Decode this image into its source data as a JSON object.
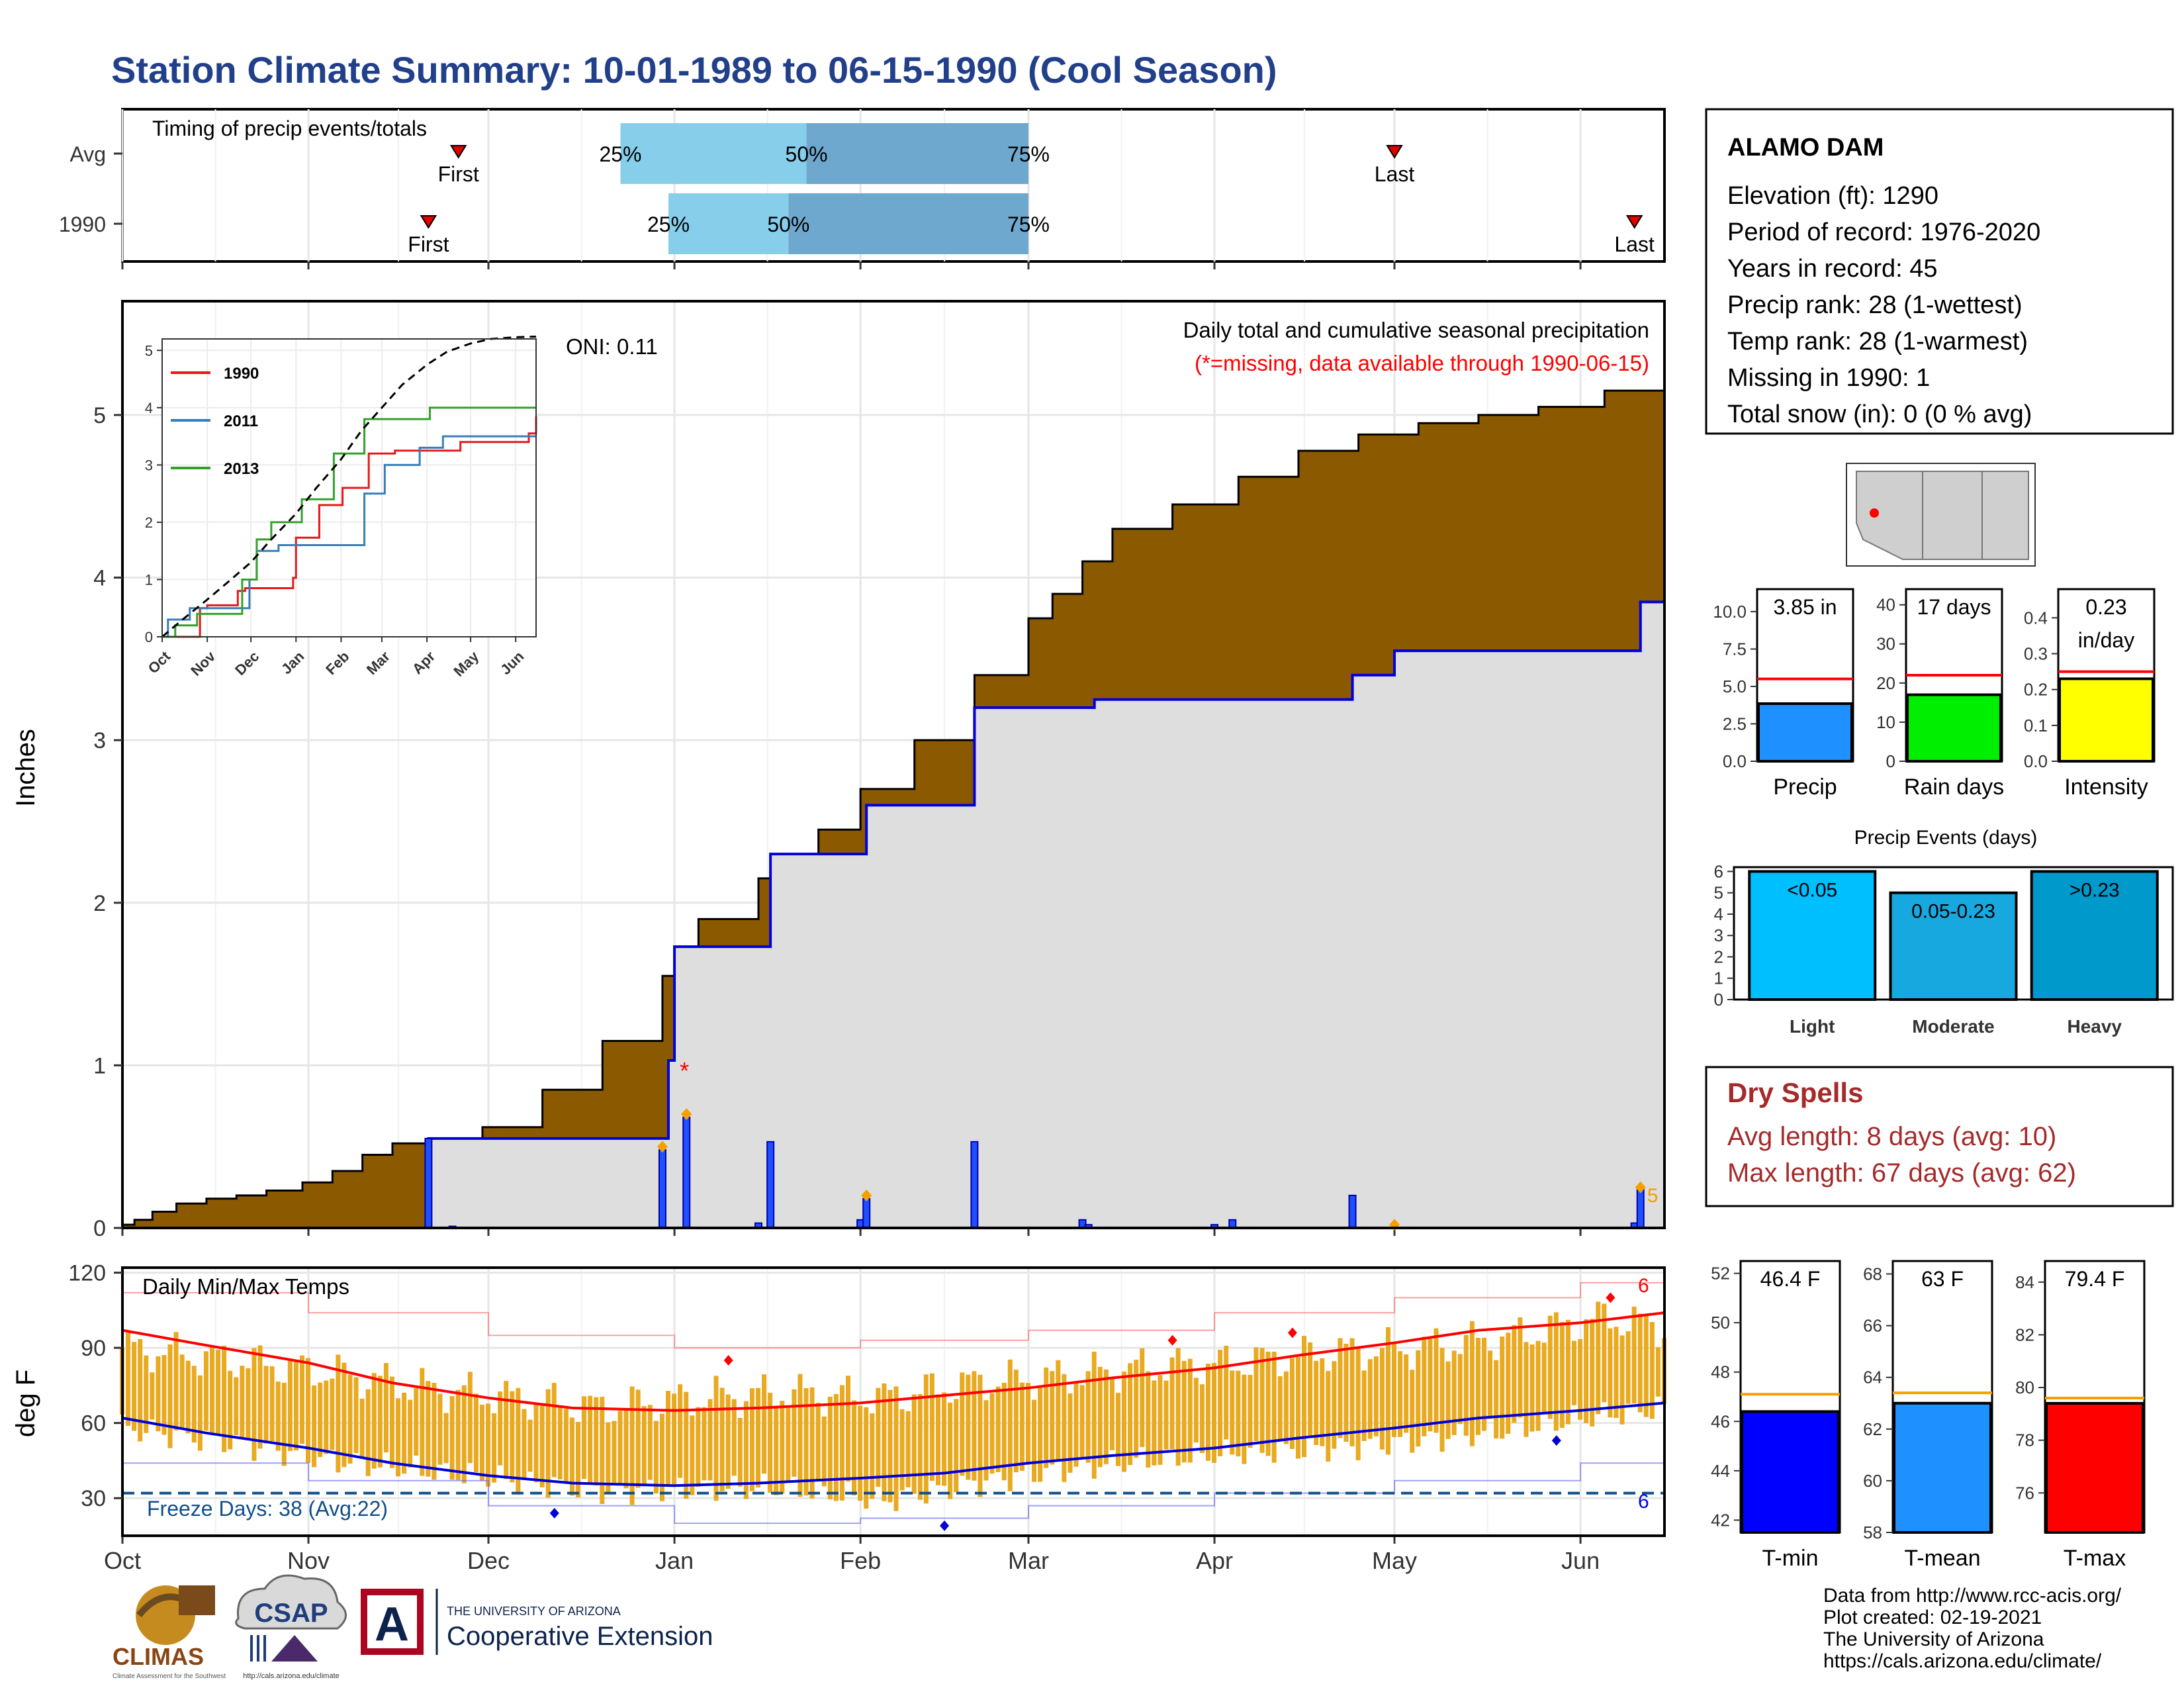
{
  "title": "Station Climate Summary: 10-01-1989 to 06-15-1990 (Cool Season)",
  "colors": {
    "title": "#22408a",
    "cum_fill": "#8b5a00",
    "avg_fill": "#dedede",
    "daily_bar": "#1f4fff",
    "temp_bar": "#e8aa20",
    "tmax": "#ff0000",
    "tmin": "#0000d8",
    "dry": "#a52a2a",
    "q1": "#87ceeb",
    "q2": "#6fa8ce",
    "blue_bar": "#1e90ff",
    "green_bar": "#00ee00",
    "yellow_bar": "#ffff00",
    "light": "#00bfff",
    "moderate": "#18a8e0",
    "heavy": "#0099cc"
  },
  "months": [
    "Oct",
    "Nov",
    "Dec",
    "Jan",
    "Feb",
    "Mar",
    "Apr",
    "May",
    "Jun"
  ],
  "timing": {
    "title": "Timing of precip events/totals",
    "rows": [
      {
        "label": "Avg",
        "first_label": "First",
        "last_label": "Last",
        "first": "1989-11-26",
        "last": "1990-05-01",
        "q25_label": "25%",
        "q50_label": "50%",
        "q75_label": "75%",
        "q25": "1989-12-23",
        "q50": "1990-01-23",
        "q75": "1990-03-01"
      },
      {
        "label": "1990",
        "first_label": "First",
        "last_label": "Last",
        "first": "1989-11-21",
        "last": "1990-06-10",
        "q25_label": "25%",
        "q50_label": "50%",
        "q75_label": "75%",
        "q25": "1989-12-31",
        "q50": "1990-01-20",
        "q75": "1990-03-01"
      }
    ]
  },
  "precip": {
    "ylabel": "Inches",
    "yticks": [
      "0",
      "1",
      "2",
      "3",
      "4",
      "5"
    ],
    "title": "Daily total and cumulative seasonal precipitation",
    "subtitle": "(*=missing, data available through 1990-06-15)",
    "oni": "ONI: 0.11",
    "missing_marker": "*",
    "missing_date": "1990-01-01",
    "end_label": "5",
    "inset": {
      "yticks": [
        "0",
        "1",
        "2",
        "3",
        "4",
        "5"
      ],
      "xticks": [
        "Oct",
        "Nov",
        "Dec",
        "Jan",
        "Feb",
        "Mar",
        "Apr",
        "May",
        "Jun"
      ],
      "legend": [
        "1990",
        "2011",
        "2013"
      ]
    }
  },
  "temps": {
    "title": "Daily Min/Max Temps",
    "ylabel": "deg F",
    "yticks": [
      "30",
      "60",
      "90",
      "120"
    ],
    "freeze_label": "Freeze Days: 38 (Avg:22)",
    "freeze_count": "6",
    "hot_count": "6"
  },
  "station": {
    "name": "ALAMO DAM",
    "lines": [
      "Elevation (ft): 1290",
      "Period of record: 1976-2020",
      "Years in record: 45",
      "Precip rank: 28 (1-wettest)",
      "Temp rank: 28 (1-warmest)",
      "Missing in 1990: 1",
      "Total snow (in): 0 (0 % avg)"
    ]
  },
  "minicharts": [
    {
      "label": "Precip",
      "value_label": "3.85 in",
      "ticks": [
        "0.0",
        "2.5",
        "5.0",
        "7.5",
        "10.0"
      ]
    },
    {
      "label": "Rain days",
      "value_label": "17 days",
      "ticks": [
        "0",
        "10",
        "20",
        "30",
        "40"
      ]
    },
    {
      "label": "Intensity",
      "value_label": "0.23",
      "value_label2": "in/day",
      "ticks": [
        "0.0",
        "0.1",
        "0.2",
        "0.3",
        "0.4"
      ]
    }
  ],
  "events": {
    "title": "Precip Events (days)",
    "ticks": [
      "0",
      "1",
      "2",
      "3",
      "4",
      "5",
      "6"
    ],
    "categories": [
      {
        "label": "Light",
        "inner": "<0.05"
      },
      {
        "label": "Moderate",
        "inner": "0.05-0.23"
      },
      {
        "label": "Heavy",
        "inner": ">0.23"
      }
    ]
  },
  "dry": {
    "title": "Dry Spells",
    "line1": "Avg length: 8 days (avg: 10)",
    "line2": "Max length: 67 days (avg: 62)"
  },
  "tempcharts": [
    {
      "label": "T-min",
      "value_label": "46.4 F",
      "ticks": [
        "42",
        "44",
        "46",
        "48",
        "50",
        "52"
      ]
    },
    {
      "label": "T-mean",
      "value_label": "63 F",
      "ticks": [
        "58",
        "60",
        "62",
        "64",
        "66",
        "68"
      ]
    },
    {
      "label": "T-max",
      "value_label": "79.4 F",
      "ticks": [
        "76",
        "78",
        "80",
        "82",
        "84"
      ]
    }
  ],
  "footer": {
    "climas": "CLIMAS",
    "climas_sub": "Climate Assessment for the Southwest",
    "csap": "CSAP",
    "csap_url": "http://cals.arizona.edu/climate",
    "ua_logo": "A",
    "ua_top": "THE UNIVERSITY OF ARIZONA",
    "ua_main": "Cooperative Extension",
    "credits": [
      "Data from http://www.rcc-acis.org/",
      "Plot created: 02-19-2021",
      "The University of Arizona",
      "https://cals.arizona.edu/climate/"
    ]
  },
  "chart_data": [
    {
      "type": "area",
      "name": "cumulative_precip",
      "title": "Daily total and cumulative seasonal precipitation",
      "ylabel": "Inches",
      "ylim": [
        0,
        5.7
      ],
      "x_range": [
        "1989-10-01",
        "1990-06-15"
      ],
      "observed_cumulative": {
        "x": [
          "1989-10-01",
          "1989-10-03",
          "1989-10-06",
          "1989-10-10",
          "1989-10-15",
          "1989-10-20",
          "1989-10-25",
          "1989-10-31",
          "1989-11-05",
          "1989-11-10",
          "1989-11-15",
          "1989-11-21",
          "1989-11-30",
          "1989-12-10",
          "1989-12-20",
          "1989-12-30",
          "1990-01-05",
          "1990-01-15",
          "1990-01-25",
          "1990-02-01",
          "1990-02-10",
          "1990-02-20",
          "1990-03-01",
          "1990-03-05",
          "1990-03-10",
          "1990-03-15",
          "1990-03-25",
          "1990-04-05",
          "1990-04-15",
          "1990-04-25",
          "1990-05-05",
          "1990-05-15",
          "1990-05-25",
          "1990-06-05",
          "1990-06-15"
        ],
        "y": [
          0.02,
          0.05,
          0.1,
          0.15,
          0.18,
          0.2,
          0.23,
          0.28,
          0.35,
          0.45,
          0.52,
          0.55,
          0.62,
          0.85,
          1.15,
          1.55,
          1.9,
          2.15,
          2.45,
          2.7,
          3.0,
          3.4,
          3.75,
          3.9,
          4.1,
          4.3,
          4.45,
          4.62,
          4.78,
          4.88,
          4.95,
          5.0,
          5.05,
          5.15,
          5.23
        ]
      },
      "season_total_1990": {
        "x": [
          "1989-10-01",
          "1989-11-21",
          "1989-11-30",
          "1989-12-30",
          "1989-12-31",
          "1990-01-01",
          "1990-01-15",
          "1990-01-17",
          "1990-02-01",
          "1990-02-02",
          "1990-02-20",
          "1990-03-10",
          "1990-03-12",
          "1990-04-01",
          "1990-04-24",
          "1990-05-01",
          "1990-06-10",
          "1990-06-11",
          "1990-06-15"
        ],
        "y": [
          0.0,
          0.55,
          0.55,
          0.55,
          1.03,
          1.73,
          1.73,
          2.3,
          2.3,
          2.6,
          3.2,
          3.2,
          3.25,
          3.25,
          3.4,
          3.55,
          3.55,
          3.85,
          3.85
        ]
      },
      "daily": {
        "x": [
          "1989-11-21",
          "1989-11-25",
          "1989-12-30",
          "1990-01-03",
          "1990-01-15",
          "1990-01-17",
          "1990-02-01",
          "1990-02-02",
          "1990-02-20",
          "1990-03-10",
          "1990-03-11",
          "1990-04-01",
          "1990-04-04",
          "1990-04-24",
          "1990-06-10",
          "1990-06-11"
        ],
        "y": [
          0.55,
          0.01,
          0.48,
          0.68,
          0.03,
          0.53,
          0.05,
          0.18,
          0.53,
          0.05,
          0.02,
          0.02,
          0.05,
          0.2,
          0.03,
          0.25
        ]
      },
      "daily_markers": {
        "x": [
          "1989-12-30",
          "1990-01-03",
          "1990-02-02",
          "1990-05-01",
          "1990-06-11"
        ],
        "y": [
          0.5,
          0.7,
          0.2,
          0.02,
          0.25
        ]
      }
    },
    {
      "type": "line",
      "name": "inset_cumulative",
      "ylim": [
        0,
        5.2
      ],
      "x_range": [
        "1989-10-01",
        "1990-06-15"
      ],
      "series": [
        {
          "name": "1990",
          "x": [
            "1989-10-01",
            "1989-10-25",
            "1989-10-27",
            "1989-11-01",
            "1989-11-21",
            "1989-11-22",
            "1989-11-27",
            "1989-12-30",
            "1990-01-01",
            "1990-01-15",
            "1990-01-17",
            "1990-02-01",
            "1990-02-02",
            "1990-02-20",
            "1990-03-10",
            "1990-04-01",
            "1990-04-24",
            "1990-06-10",
            "1990-06-15"
          ],
          "y": [
            0,
            0,
            0.5,
            0.55,
            0.55,
            0.8,
            0.85,
            1.03,
            1.73,
            1.73,
            2.3,
            2.3,
            2.6,
            3.2,
            3.25,
            3.25,
            3.4,
            3.55,
            3.85
          ]
        },
        {
          "name": "2011",
          "x": [
            "1989-10-01",
            "1989-10-05",
            "1989-10-20",
            "1989-11-20",
            "1989-11-30",
            "1989-12-05",
            "1989-12-20",
            "1990-02-15",
            "1990-02-17",
            "1990-03-01",
            "1990-03-03",
            "1990-03-25",
            "1990-03-27",
            "1990-04-10",
            "1990-04-12",
            "1990-06-15"
          ],
          "y": [
            0,
            0.3,
            0.5,
            0.5,
            1.0,
            1.5,
            1.6,
            1.6,
            2.5,
            2.5,
            3.0,
            3.0,
            3.3,
            3.3,
            3.5,
            3.5
          ]
        },
        {
          "name": "2013",
          "x": [
            "1989-10-01",
            "1989-10-10",
            "1989-10-25",
            "1989-11-20",
            "1989-11-25",
            "1989-12-05",
            "1989-12-15",
            "1990-01-01",
            "1990-01-05",
            "1990-01-25",
            "1990-01-27",
            "1990-02-15",
            "1990-02-17",
            "1990-04-01",
            "1990-04-03",
            "1990-06-15"
          ],
          "y": [
            0,
            0.2,
            0.4,
            0.4,
            1.0,
            1.7,
            2.0,
            2.0,
            2.4,
            2.4,
            3.2,
            3.2,
            3.8,
            3.8,
            4.0,
            4.0
          ]
        },
        {
          "name": "avg",
          "x": [
            "1989-10-01",
            "1989-10-15",
            "1989-11-01",
            "1989-11-15",
            "1989-12-01",
            "1989-12-15",
            "1990-01-01",
            "1990-01-15",
            "1990-02-01",
            "1990-02-15",
            "1990-03-01",
            "1990-03-15",
            "1990-04-01",
            "1990-04-15",
            "1990-05-01",
            "1990-05-15",
            "1990-06-01",
            "1990-06-15"
          ],
          "y": [
            0,
            0.3,
            0.65,
            0.95,
            1.3,
            1.7,
            2.15,
            2.6,
            3.1,
            3.6,
            4.0,
            4.4,
            4.75,
            4.98,
            5.12,
            5.2,
            5.23,
            5.24
          ]
        }
      ]
    },
    {
      "type": "bar",
      "name": "daily_temps",
      "title": "Daily Min/Max Temps",
      "ylabel": "deg F",
      "ylim": [
        15,
        122
      ],
      "x_range": [
        "1989-10-01",
        "1990-06-15"
      ],
      "freeze_line": 32,
      "tmax_normal": {
        "x": [
          "1989-10-01",
          "1989-10-15",
          "1989-11-01",
          "1989-11-15",
          "1989-12-01",
          "1989-12-15",
          "1990-01-01",
          "1990-01-15",
          "1990-02-01",
          "1990-02-15",
          "1990-03-01",
          "1990-03-15",
          "1990-04-01",
          "1990-04-15",
          "1990-05-01",
          "1990-05-15",
          "1990-06-01",
          "1990-06-15"
        ],
        "y": [
          97,
          91,
          84,
          76,
          70,
          66,
          65,
          66,
          68,
          71,
          74,
          78,
          82,
          87,
          92,
          97,
          100,
          104
        ]
      },
      "tmin_normal": {
        "x": [
          "1989-10-01",
          "1989-10-15",
          "1989-11-01",
          "1989-11-15",
          "1989-12-01",
          "1989-12-15",
          "1990-01-01",
          "1990-01-15",
          "1990-02-01",
          "1990-02-15",
          "1990-03-01",
          "1990-03-15",
          "1990-04-01",
          "1990-04-15",
          "1990-05-01",
          "1990-05-15",
          "1990-06-01",
          "1990-06-15"
        ],
        "y": [
          62,
          56,
          50,
          44,
          39,
          36,
          35,
          36,
          38,
          40,
          44,
          47,
          50,
          54,
          58,
          62,
          65,
          68
        ]
      },
      "tmax_record": {
        "x": [
          "1989-10-01",
          "1989-11-01",
          "1989-12-01",
          "1990-01-01",
          "1990-02-01",
          "1990-03-01",
          "1990-04-01",
          "1990-05-01",
          "1990-06-01",
          "1990-06-15"
        ],
        "y": [
          112,
          104,
          95,
          90,
          93,
          97,
          104,
          110,
          116,
          120
        ]
      },
      "tmin_record": {
        "x": [
          "1989-10-01",
          "1989-11-01",
          "1989-12-01",
          "1990-01-01",
          "1990-02-01",
          "1990-03-01",
          "1990-04-01",
          "1990-05-01",
          "1990-06-01",
          "1990-06-15"
        ],
        "y": [
          44,
          37,
          27,
          20,
          22,
          27,
          32,
          37,
          44,
          52
        ]
      },
      "observed_band": {
        "x": [
          "1989-10-01",
          "1989-10-20",
          "1989-11-05",
          "1989-11-20",
          "1989-12-05",
          "1989-12-20",
          "1990-01-05",
          "1990-01-20",
          "1990-02-05",
          "1990-02-20",
          "1990-03-05",
          "1990-03-20",
          "1990-04-05",
          "1990-04-20",
          "1990-05-05",
          "1990-05-20",
          "1990-06-05",
          "1990-06-15"
        ],
        "tmax": [
          90,
          85,
          80,
          74,
          70,
          66,
          70,
          72,
          70,
          76,
          78,
          82,
          84,
          88,
          90,
          94,
          102,
          98
        ],
        "tmin": [
          58,
          52,
          45,
          41,
          37,
          33,
          34,
          34,
          29,
          36,
          41,
          45,
          48,
          50,
          53,
          57,
          63,
          66
        ]
      },
      "record_highs": {
        "x": [
          "1990-01-10",
          "1990-03-25",
          "1990-04-14",
          "1990-06-06"
        ],
        "y": [
          85,
          93,
          96,
          110
        ]
      },
      "record_lows": {
        "x": [
          "1989-12-12",
          "1990-02-15",
          "1990-05-28"
        ],
        "y": [
          24,
          19,
          53
        ]
      }
    },
    {
      "type": "bar",
      "name": "precip_total",
      "categories": [
        "Precip"
      ],
      "values": [
        3.85
      ],
      "normal": 5.5,
      "ylim": [
        0,
        11.5
      ]
    },
    {
      "type": "bar",
      "name": "rain_days",
      "categories": [
        "Rain days"
      ],
      "values": [
        17
      ],
      "normal": 22,
      "ylim": [
        0,
        44
      ]
    },
    {
      "type": "bar",
      "name": "intensity",
      "categories": [
        "Intensity"
      ],
      "values": [
        0.23
      ],
      "normal": 0.25,
      "ylim": [
        0,
        0.48
      ]
    },
    {
      "type": "bar",
      "name": "precip_events",
      "title": "Precip Events (days)",
      "categories": [
        "Light",
        "Moderate",
        "Heavy"
      ],
      "values": [
        6,
        5,
        6
      ],
      "ylim": [
        0,
        6.2
      ]
    },
    {
      "type": "bar",
      "name": "tmin",
      "categories": [
        "T-min"
      ],
      "values": [
        46.4
      ],
      "normal": 47.1,
      "ylim": [
        41.5,
        52.5
      ]
    },
    {
      "type": "bar",
      "name": "tmean",
      "categories": [
        "T-mean"
      ],
      "values": [
        63
      ],
      "normal": 63.4,
      "ylim": [
        58,
        68.5
      ]
    },
    {
      "type": "bar",
      "name": "tmax",
      "categories": [
        "T-max"
      ],
      "values": [
        79.4
      ],
      "normal": 79.6,
      "ylim": [
        74.5,
        84.8
      ]
    }
  ]
}
